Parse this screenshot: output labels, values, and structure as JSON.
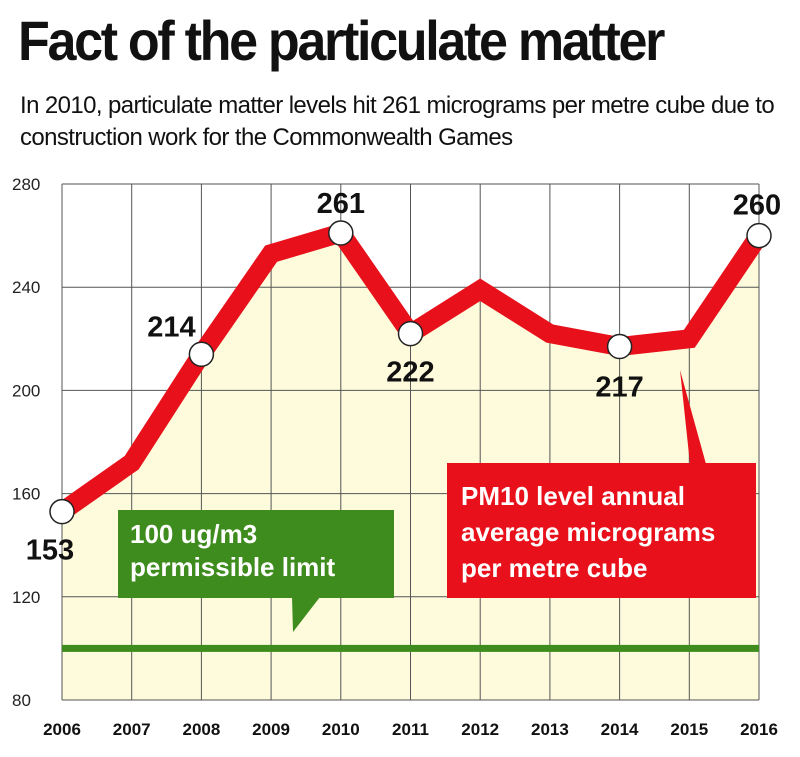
{
  "header": {
    "title": "Fact of the particulate matter",
    "subtitle": "In 2010, particulate matter levels hit 261 micrograms per metre cube due to construction work for the Commonwealth Games"
  },
  "colors": {
    "line": "#e8101a",
    "area": "#fdfbdc",
    "limit": "#3e8c1e",
    "grid": "#555555"
  },
  "chart_data": {
    "type": "line",
    "x": [
      "2006",
      "2007",
      "2008",
      "2009",
      "2010",
      "2011",
      "2012",
      "2013",
      "2014",
      "2015",
      "2016"
    ],
    "series": [
      {
        "name": "PM10 level annual average micrograms per metre cube",
        "values": [
          153,
          172,
          214,
          253,
          261,
          222,
          239,
          222,
          217,
          220,
          260
        ]
      }
    ],
    "labeled_points": [
      {
        "x": "2006",
        "label": "153"
      },
      {
        "x": "2008",
        "label": "214"
      },
      {
        "x": "2010",
        "label": "261"
      },
      {
        "x": "2011",
        "label": "222"
      },
      {
        "x": "2014",
        "label": "217"
      },
      {
        "x": "2016",
        "label": "260"
      }
    ],
    "yticks": [
      80,
      120,
      160,
      200,
      240,
      280
    ],
    "ylim": [
      80,
      280
    ],
    "grid": true,
    "reference_line": {
      "value": 100,
      "label_lines": [
        "100 ug/m3",
        "permissible limit"
      ]
    },
    "series_label_lines": [
      "PM10 level annual",
      "average micrograms",
      "per metre cube"
    ]
  }
}
